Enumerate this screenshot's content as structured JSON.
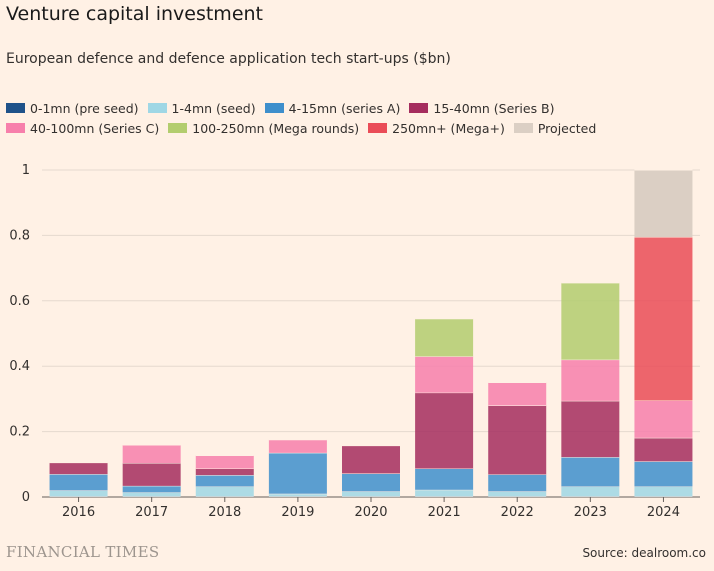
{
  "header": {
    "title": "Venture capital investment",
    "subtitle": "European defence and defence application tech start-ups ($bn)"
  },
  "legend_rows": [
    [
      {
        "label": "0-1mn (pre seed)",
        "color": "#1f5289",
        "name": "legend-pre-seed"
      },
      {
        "label": "1-4mn (seed)",
        "color": "#9fd7e5",
        "name": "legend-seed"
      },
      {
        "label": "4-15mn (series A)",
        "color": "#3e8fcc",
        "name": "legend-series-a"
      },
      {
        "label": "15-40mn (Series B)",
        "color": "#a52d5e",
        "name": "legend-series-b"
      }
    ],
    [
      {
        "label": "40-100mn (Series C)",
        "color": "#f77fab",
        "name": "legend-series-c"
      },
      {
        "label": "100-250mn (Mega rounds)",
        "color": "#b3cd6e",
        "name": "legend-mega"
      },
      {
        "label": "250mn+ (Mega+)",
        "color": "#ea4c57",
        "name": "legend-mega-plus"
      },
      {
        "label": "Projected",
        "color": "#dbcfc4",
        "name": "legend-projected"
      }
    ]
  ],
  "chart_data": {
    "type": "bar",
    "stacked": true,
    "title": "Venture capital investment",
    "subtitle": "European defence and defence application tech start-ups ($bn)",
    "xlabel": "",
    "ylabel": "$bn",
    "ylim": [
      0,
      1
    ],
    "yticks": [
      0,
      0.2,
      0.4,
      0.6,
      0.8,
      1
    ],
    "ytick_labels": [
      "0",
      "0.2",
      "0.4",
      "0.6",
      "0.8",
      "1"
    ],
    "categories": [
      "2016",
      "2017",
      "2018",
      "2019",
      "2020",
      "2021",
      "2022",
      "2023",
      "2024"
    ],
    "series": [
      {
        "name": "0-1mn (pre seed)",
        "color": "#1f5289",
        "opacity": 1,
        "values": [
          0.002,
          0.002,
          0.002,
          0.002,
          0.002,
          0.002,
          0.002,
          0.002,
          0.002
        ]
      },
      {
        "name": "1-4mn (seed)",
        "color": "#9fd7e5",
        "opacity": 0.85,
        "values": [
          0.018,
          0.012,
          0.03,
          0.008,
          0.015,
          0.02,
          0.015,
          0.03,
          0.03
        ]
      },
      {
        "name": "4-15mn (series A)",
        "color": "#3e8fcc",
        "opacity": 0.85,
        "values": [
          0.05,
          0.02,
          0.035,
          0.125,
          0.055,
          0.065,
          0.052,
          0.09,
          0.077
        ]
      },
      {
        "name": "15-40mn (Series B)",
        "color": "#a52d5e",
        "opacity": 0.85,
        "values": [
          0.035,
          0.07,
          0.02,
          0.0,
          0.085,
          0.232,
          0.211,
          0.172,
          0.072
        ]
      },
      {
        "name": "40-100mn (Series C)",
        "color": "#f77fab",
        "opacity": 0.85,
        "values": [
          0.0,
          0.055,
          0.04,
          0.04,
          0.0,
          0.111,
          0.07,
          0.126,
          0.114
        ]
      },
      {
        "name": "100-250mn (Mega rounds)",
        "color": "#b3cd6e",
        "opacity": 0.85,
        "values": [
          0.0,
          0.0,
          0.0,
          0.0,
          0.0,
          0.115,
          0.0,
          0.235,
          0.0
        ]
      },
      {
        "name": "250mn+ (Mega+)",
        "color": "#ea4c57",
        "opacity": 0.85,
        "values": [
          0.0,
          0.0,
          0.0,
          0.0,
          0.0,
          0.0,
          0.0,
          0.0,
          0.5
        ]
      },
      {
        "name": "Projected",
        "color": "#dbcfc4",
        "opacity": 1,
        "values": [
          0.0,
          0.0,
          0.0,
          0.0,
          0.0,
          0.0,
          0.0,
          0.0,
          0.205
        ]
      }
    ],
    "gridlines": true
  },
  "footer": {
    "brand": "FINANCIAL TIMES",
    "source": "Source: dealroom.co"
  }
}
